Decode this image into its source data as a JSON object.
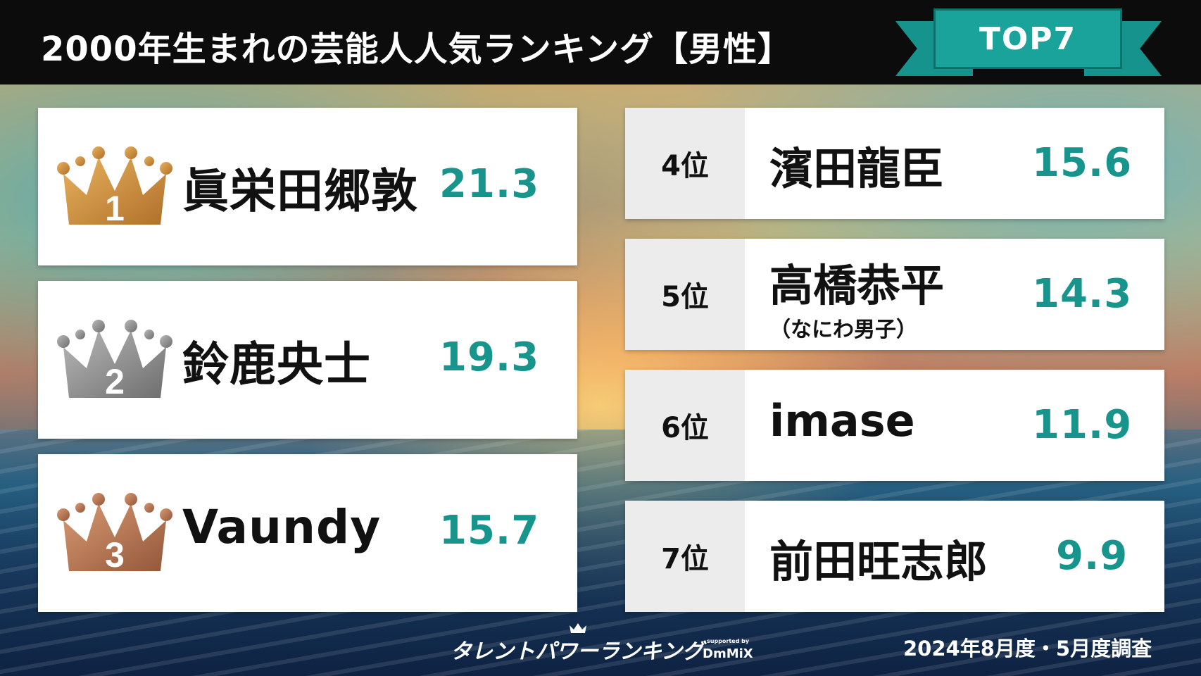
{
  "header": {
    "title": "2000年生まれの芸能人人気ランキング【男性】",
    "badge": "TOP7"
  },
  "colors": {
    "score": "#17958d",
    "gold_crown": "#c88a3a",
    "silver_crown": "#8a8a8a",
    "bronze_crown": "#b5734c",
    "badge": "#1aa39b"
  },
  "left_ranking": [
    {
      "crown_number": "1",
      "crown_icon": "gold-crown-icon",
      "name": "眞栄田郷敦",
      "score": "21.3"
    },
    {
      "crown_number": "2",
      "crown_icon": "silver-crown-icon",
      "name": "鈴鹿央士",
      "score": "19.3"
    },
    {
      "crown_number": "3",
      "crown_icon": "bronze-crown-icon",
      "name": "Vaundy",
      "score": "15.7"
    }
  ],
  "right_ranking": [
    {
      "rank": "4位",
      "name": "濱田龍臣",
      "note": "",
      "score": "15.6"
    },
    {
      "rank": "5位",
      "name": "高橋恭平",
      "note": "（なにわ男子）",
      "score": "14.3"
    },
    {
      "rank": "6位",
      "name": "imase",
      "note": "",
      "score": "11.9"
    },
    {
      "rank": "7位",
      "name": "前田旺志郎",
      "note": "",
      "score": "9.9"
    }
  ],
  "footer": {
    "brand": "タレントパワーランキング",
    "supported_by": "supported by",
    "partner": "DmMiX",
    "survey_date": "2024年8月度・5月度調査"
  }
}
